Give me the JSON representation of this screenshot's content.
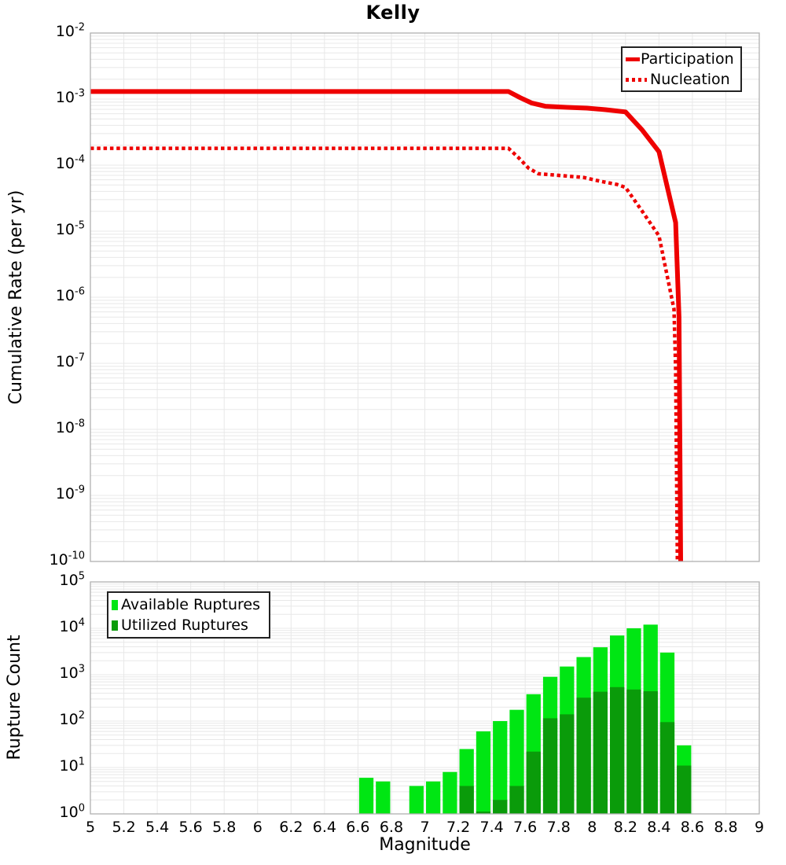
{
  "title": "Kelly",
  "xlabel": "Magnitude",
  "x_ticks": [
    "5",
    "5.2",
    "5.4",
    "5.6",
    "5.8",
    "6",
    "6.2",
    "6.4",
    "6.6",
    "6.8",
    "7",
    "7.2",
    "7.4",
    "7.6",
    "7.8",
    "8",
    "8.2",
    "8.4",
    "8.6",
    "8.8",
    "9"
  ],
  "colors": {
    "line_red": "#ee0000",
    "available_green": "#00e613",
    "utilized_green": "#0a9b0a",
    "grid": "#e8e8e8",
    "frame": "#b0b0b0",
    "legend_border": "#222222",
    "background": "#ffffff"
  },
  "chart_data": [
    {
      "type": "line",
      "panel": "top",
      "title": "Kelly",
      "xlabel": "Magnitude",
      "ylabel": "Cumulative Rate (per yr)",
      "x_range": [
        5,
        9
      ],
      "y_scale": "log",
      "y_range": [
        1e-10,
        0.01
      ],
      "y_tick_exponents": [
        -2,
        -3,
        -4,
        -5,
        -6,
        -7,
        -8,
        -9,
        -10
      ],
      "grid": "on",
      "legend_position": "top-right",
      "series": [
        {
          "name": "Participation",
          "style": "solid",
          "points": [
            [
              5.0,
              0.0013
            ],
            [
              7.5,
              0.0013
            ],
            [
              7.57,
              0.00105
            ],
            [
              7.64,
              0.00087
            ],
            [
              7.72,
              0.00078
            ],
            [
              7.85,
              0.00075
            ],
            [
              7.97,
              0.00073
            ],
            [
              8.08,
              0.00069
            ],
            [
              8.2,
              0.00064
            ],
            [
              8.3,
              0.00034
            ],
            [
              8.4,
              0.00016
            ],
            [
              8.5,
              1.35e-05
            ],
            [
              8.52,
              5e-07
            ],
            [
              8.53,
              1e-10
            ]
          ]
        },
        {
          "name": "Nucleation",
          "style": "dotted",
          "points": [
            [
              5.0,
              0.00018
            ],
            [
              7.5,
              0.00018
            ],
            [
              7.56,
              0.00013
            ],
            [
              7.62,
              9e-05
            ],
            [
              7.68,
              7.4e-05
            ],
            [
              7.8,
              7e-05
            ],
            [
              7.95,
              6.5e-05
            ],
            [
              8.05,
              5.7e-05
            ],
            [
              8.15,
              5.1e-05
            ],
            [
              8.2,
              4.6e-05
            ],
            [
              8.3,
              2e-05
            ],
            [
              8.4,
              8.5e-06
            ],
            [
              8.49,
              6.6e-07
            ],
            [
              8.5,
              8e-08
            ],
            [
              8.51,
              1e-10
            ]
          ]
        }
      ]
    },
    {
      "type": "bar",
      "panel": "bottom",
      "xlabel": "Magnitude",
      "ylabel": "Rupture Count",
      "x_range": [
        5,
        9
      ],
      "y_scale": "log",
      "y_range": [
        1,
        100000
      ],
      "y_tick_exponents": [
        5,
        4,
        3,
        2,
        1,
        0
      ],
      "bin_width": 0.1,
      "grid": "on",
      "legend_position": "top-left",
      "series": [
        {
          "name": "Available Ruptures",
          "color_key": "available_green",
          "bins": [
            [
              6.6,
              6
            ],
            [
              6.7,
              5
            ],
            [
              6.9,
              4
            ],
            [
              7.0,
              5
            ],
            [
              7.1,
              8
            ],
            [
              7.2,
              25
            ],
            [
              7.3,
              60
            ],
            [
              7.4,
              100
            ],
            [
              7.5,
              175
            ],
            [
              7.6,
              380
            ],
            [
              7.7,
              900
            ],
            [
              7.8,
              1500
            ],
            [
              7.9,
              2400
            ],
            [
              8.0,
              3900
            ],
            [
              8.1,
              7000
            ],
            [
              8.2,
              10000
            ],
            [
              8.3,
              12000
            ],
            [
              8.4,
              3000
            ],
            [
              8.5,
              30
            ]
          ]
        },
        {
          "name": "Utilized Ruptures",
          "color_key": "utilized_green",
          "bins": [
            [
              7.2,
              4
            ],
            [
              7.3,
              1
            ],
            [
              7.4,
              2
            ],
            [
              7.5,
              4
            ],
            [
              7.6,
              22
            ],
            [
              7.7,
              115
            ],
            [
              7.8,
              140
            ],
            [
              7.9,
              320
            ],
            [
              8.0,
              430
            ],
            [
              8.1,
              540
            ],
            [
              8.2,
              480
            ],
            [
              8.3,
              440
            ],
            [
              8.4,
              95
            ],
            [
              8.5,
              11
            ]
          ]
        }
      ]
    }
  ]
}
